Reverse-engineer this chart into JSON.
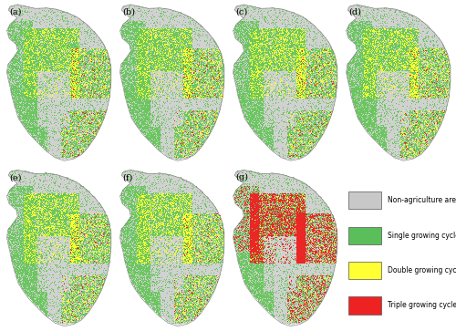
{
  "figure_size": [
    5.0,
    3.63
  ],
  "dpi": 100,
  "background_color": "#ffffff",
  "panel_labels": [
    "(a)",
    "(b)",
    "(c)",
    "(d)",
    "(e)",
    "(f)",
    "(g)"
  ],
  "legend_labels": [
    "Non-agriculture area",
    "Single growing cycle area",
    "Double growing cycle area",
    "Triple growing cycle area"
  ],
  "legend_colors": [
    "#c8c8c8",
    "#5abf5a",
    "#ffff33",
    "#ee2222"
  ],
  "panel_label_fontsize": 7,
  "legend_fontsize": 5.5
}
